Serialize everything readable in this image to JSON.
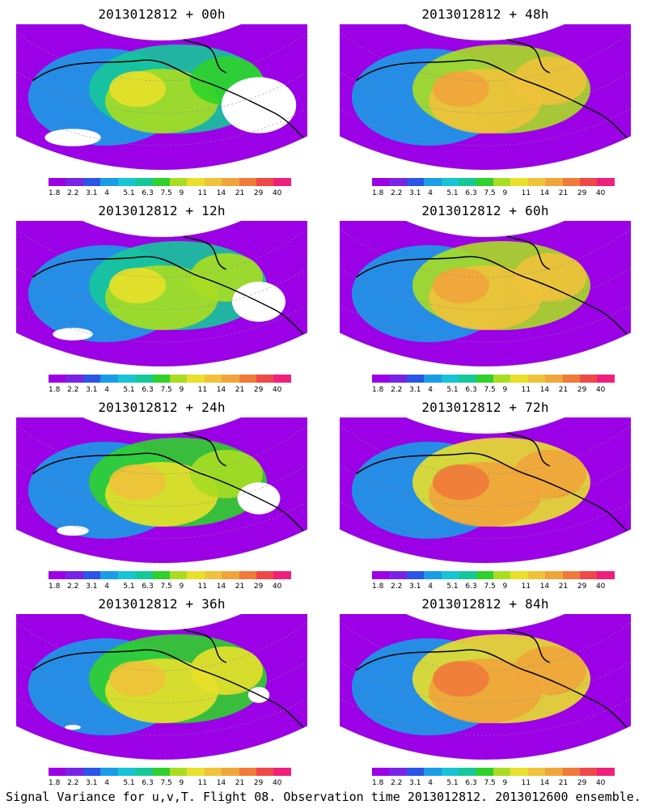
{
  "panels": [
    {
      "title": "2013012812 + 00h",
      "intensity": 0.15
    },
    {
      "title": "2013012812 + 48h",
      "intensity": 0.55
    },
    {
      "title": "2013012812 + 12h",
      "intensity": 0.25
    },
    {
      "title": "2013012812 + 60h",
      "intensity": 0.6
    },
    {
      "title": "2013012812 + 24h",
      "intensity": 0.3
    },
    {
      "title": "2013012812 + 72h",
      "intensity": 0.7
    },
    {
      "title": "2013012812 + 36h",
      "intensity": 0.4
    },
    {
      "title": "2013012812 + 84h",
      "intensity": 0.75
    }
  ],
  "colorbar": {
    "colors": [
      "#9b00e6",
      "#7a22e6",
      "#2b55e6",
      "#1a9ce6",
      "#17c4d6",
      "#15c89a",
      "#2fd12a",
      "#a9dd22",
      "#e8e02a",
      "#f0c23a",
      "#f0a53a",
      "#f07a3a",
      "#f04848",
      "#f01f7a"
    ],
    "tick_labels": [
      "1.8",
      "2.2",
      "3.1",
      "4",
      "5.1",
      "6.3",
      "7.5",
      "9",
      "11",
      "14",
      "21",
      "29",
      "40"
    ]
  },
  "caption": "Signal Variance for u,v,T. Flight 08. Observation time 2013012812. 2013012600 ensemble."
}
